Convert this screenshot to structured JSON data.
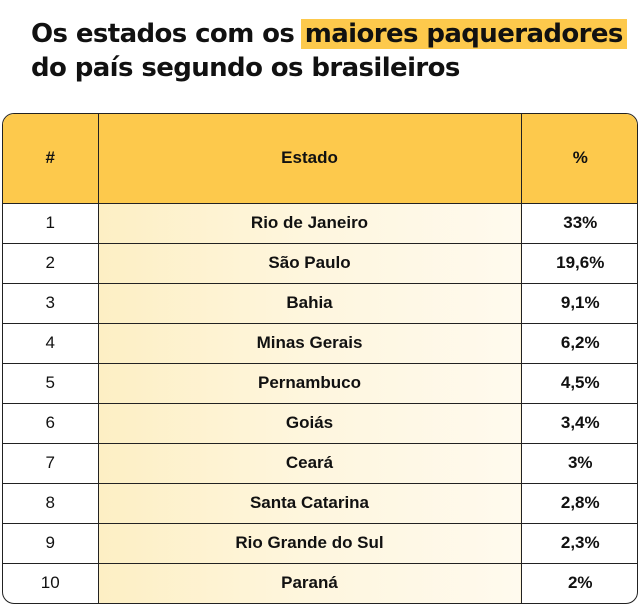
{
  "title": {
    "part1": "Os estados com os ",
    "highlight": "maiores paqueradores",
    "line2": "do país segundo os brasileiros"
  },
  "colors": {
    "accent": "#fdc94c",
    "row_fill": "#fef3d3",
    "border": "#222222"
  },
  "chart_data": {
    "type": "table",
    "columns": [
      "#",
      "Estado",
      "%"
    ],
    "rows": [
      {
        "rank": "1",
        "state": "Rio de Janeiro",
        "pct": "33%"
      },
      {
        "rank": "2",
        "state": "São Paulo",
        "pct": "19,6%"
      },
      {
        "rank": "3",
        "state": "Bahia",
        "pct": "9,1%"
      },
      {
        "rank": "4",
        "state": "Minas Gerais",
        "pct": "6,2%"
      },
      {
        "rank": "5",
        "state": "Pernambuco",
        "pct": "4,5%"
      },
      {
        "rank": "6",
        "state": "Goiás",
        "pct": "3,4%"
      },
      {
        "rank": "7",
        "state": "Ceará",
        "pct": "3%"
      },
      {
        "rank": "8",
        "state": "Santa Catarina",
        "pct": "2,8%"
      },
      {
        "rank": "9",
        "state": "Rio Grande do Sul",
        "pct": "2,3%"
      },
      {
        "rank": "10",
        "state": "Paraná",
        "pct": "2%"
      }
    ]
  }
}
